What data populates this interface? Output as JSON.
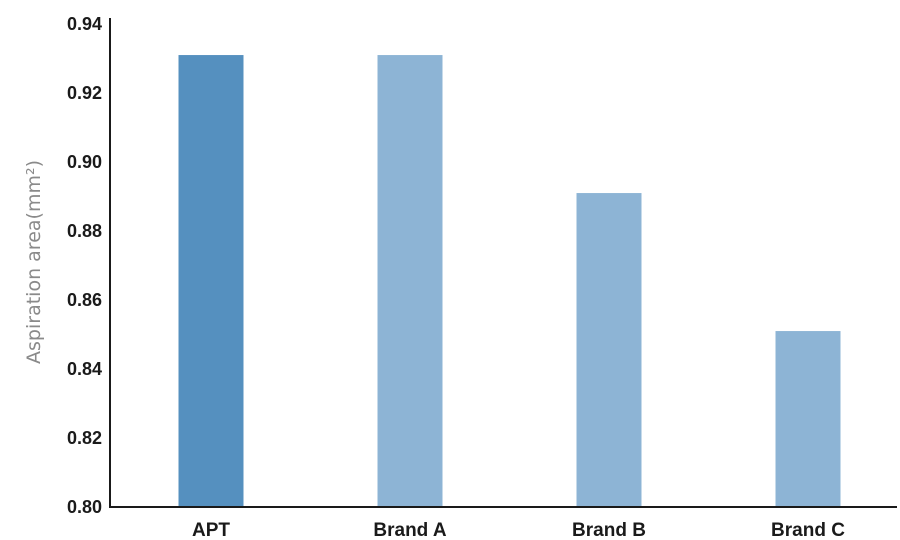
{
  "chart_data": {
    "type": "bar",
    "title": "",
    "xlabel": "",
    "ylabel": "Aspiration area(mm²)",
    "categories": [
      "APT",
      "Brand A",
      "Brand B",
      "Brand C"
    ],
    "values": [
      0.931,
      0.931,
      0.891,
      0.851
    ],
    "ylim": [
      0.8,
      0.94
    ],
    "yticks": [
      "0.80",
      "0.82",
      "0.84",
      "0.86",
      "0.88",
      "0.90",
      "0.92",
      "0.94"
    ],
    "grid": false,
    "legend": "none",
    "colors": {
      "highlight": "#5590bf",
      "default": "#8db4d5"
    },
    "highlight_index": 0
  }
}
